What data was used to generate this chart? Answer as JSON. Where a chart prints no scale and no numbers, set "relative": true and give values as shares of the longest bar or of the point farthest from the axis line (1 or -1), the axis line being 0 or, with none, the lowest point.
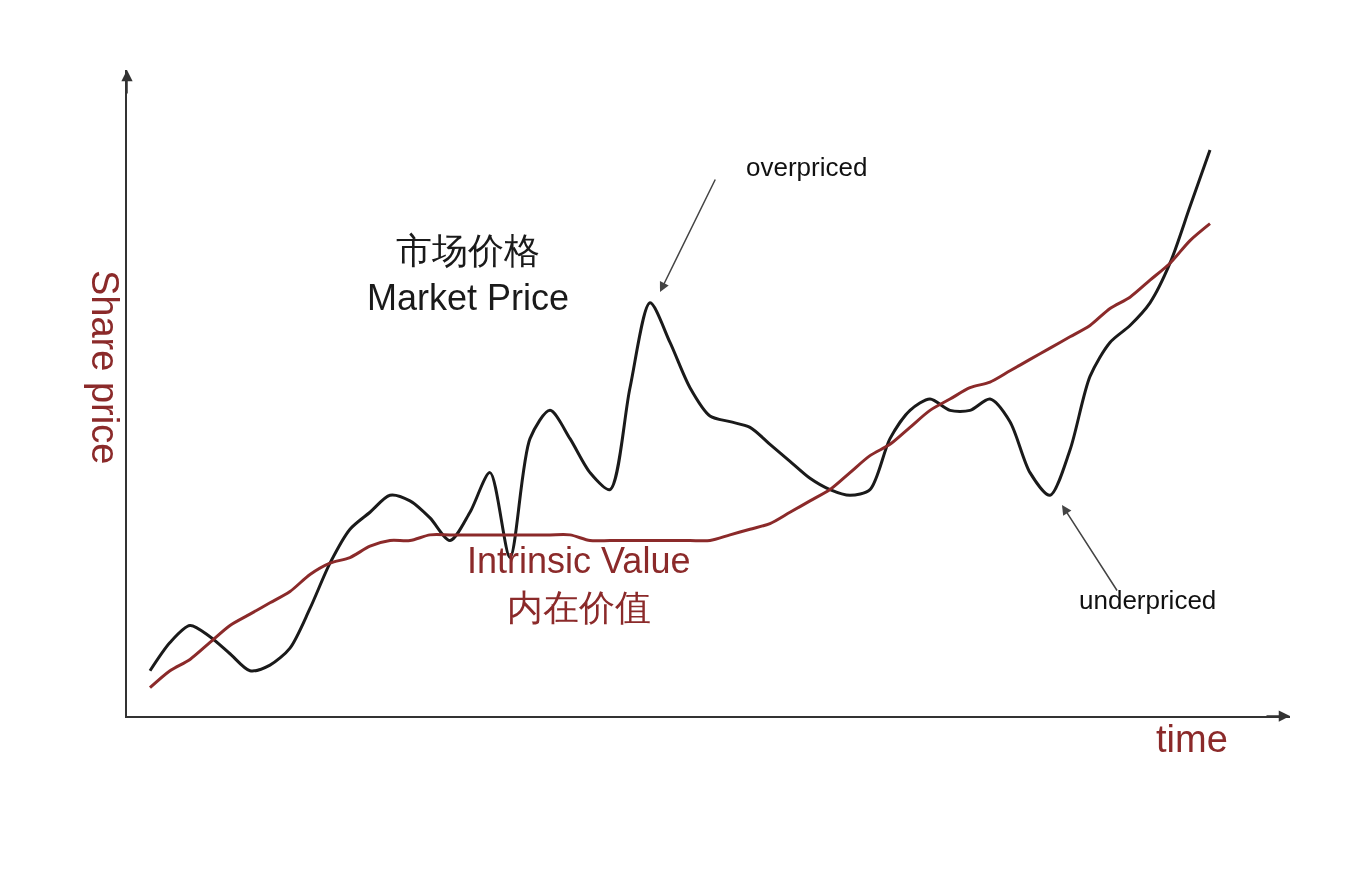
{
  "chart_data": {
    "type": "line",
    "relative": true,
    "xlabel": "time",
    "ylabel": "Share price",
    "legend": false,
    "marker": "none",
    "line_style": "solid",
    "categories": [
      null,
      null,
      null,
      null,
      null,
      null,
      null,
      null,
      null,
      null,
      null,
      null,
      null,
      null,
      null,
      null,
      null,
      null,
      null,
      null,
      null,
      null,
      null,
      null,
      null,
      null,
      null,
      null,
      null,
      null,
      null,
      null,
      null,
      null,
      null,
      null,
      null,
      null,
      null,
      null,
      null,
      null,
      null,
      null,
      null,
      null,
      null,
      null,
      null,
      null,
      null,
      null,
      null,
      null
    ],
    "series": [
      {
        "name": "市场价格\nMarket Price",
        "color": "#1a1a1a",
        "values": [
          0.08,
          0.13,
          0.16,
          0.14,
          0.11,
          0.08,
          0.09,
          0.12,
          0.19,
          0.27,
          0.33,
          0.36,
          0.39,
          0.38,
          0.35,
          0.31,
          0.36,
          0.43,
          0.28,
          0.49,
          0.54,
          0.49,
          0.43,
          0.4,
          0.58,
          0.73,
          0.66,
          0.58,
          0.53,
          0.52,
          0.51,
          0.48,
          0.45,
          0.42,
          0.4,
          0.39,
          0.4,
          0.49,
          0.54,
          0.56,
          0.54,
          0.54,
          0.56,
          0.52,
          0.43,
          0.39,
          0.47,
          0.6,
          0.66,
          0.69,
          0.73,
          0.8,
          0.9,
          1.0
        ]
      },
      {
        "name": "Intrinsic Value\n内在价值",
        "color": "#8b2a2a",
        "values": [
          0.05,
          0.08,
          0.1,
          0.13,
          0.16,
          0.18,
          0.2,
          0.22,
          0.25,
          0.27,
          0.28,
          0.3,
          0.31,
          0.31,
          0.32,
          0.32,
          0.32,
          0.32,
          0.32,
          0.32,
          0.32,
          0.32,
          0.31,
          0.31,
          0.31,
          0.31,
          0.31,
          0.31,
          0.31,
          0.32,
          0.33,
          0.34,
          0.36,
          0.38,
          0.4,
          0.43,
          0.46,
          0.48,
          0.51,
          0.54,
          0.56,
          0.58,
          0.59,
          0.61,
          0.63,
          0.65,
          0.67,
          0.69,
          0.72,
          0.74,
          0.77,
          0.8,
          0.84,
          0.87
        ]
      }
    ],
    "annotations": [
      "overpriced",
      "underpriced"
    ]
  }
}
